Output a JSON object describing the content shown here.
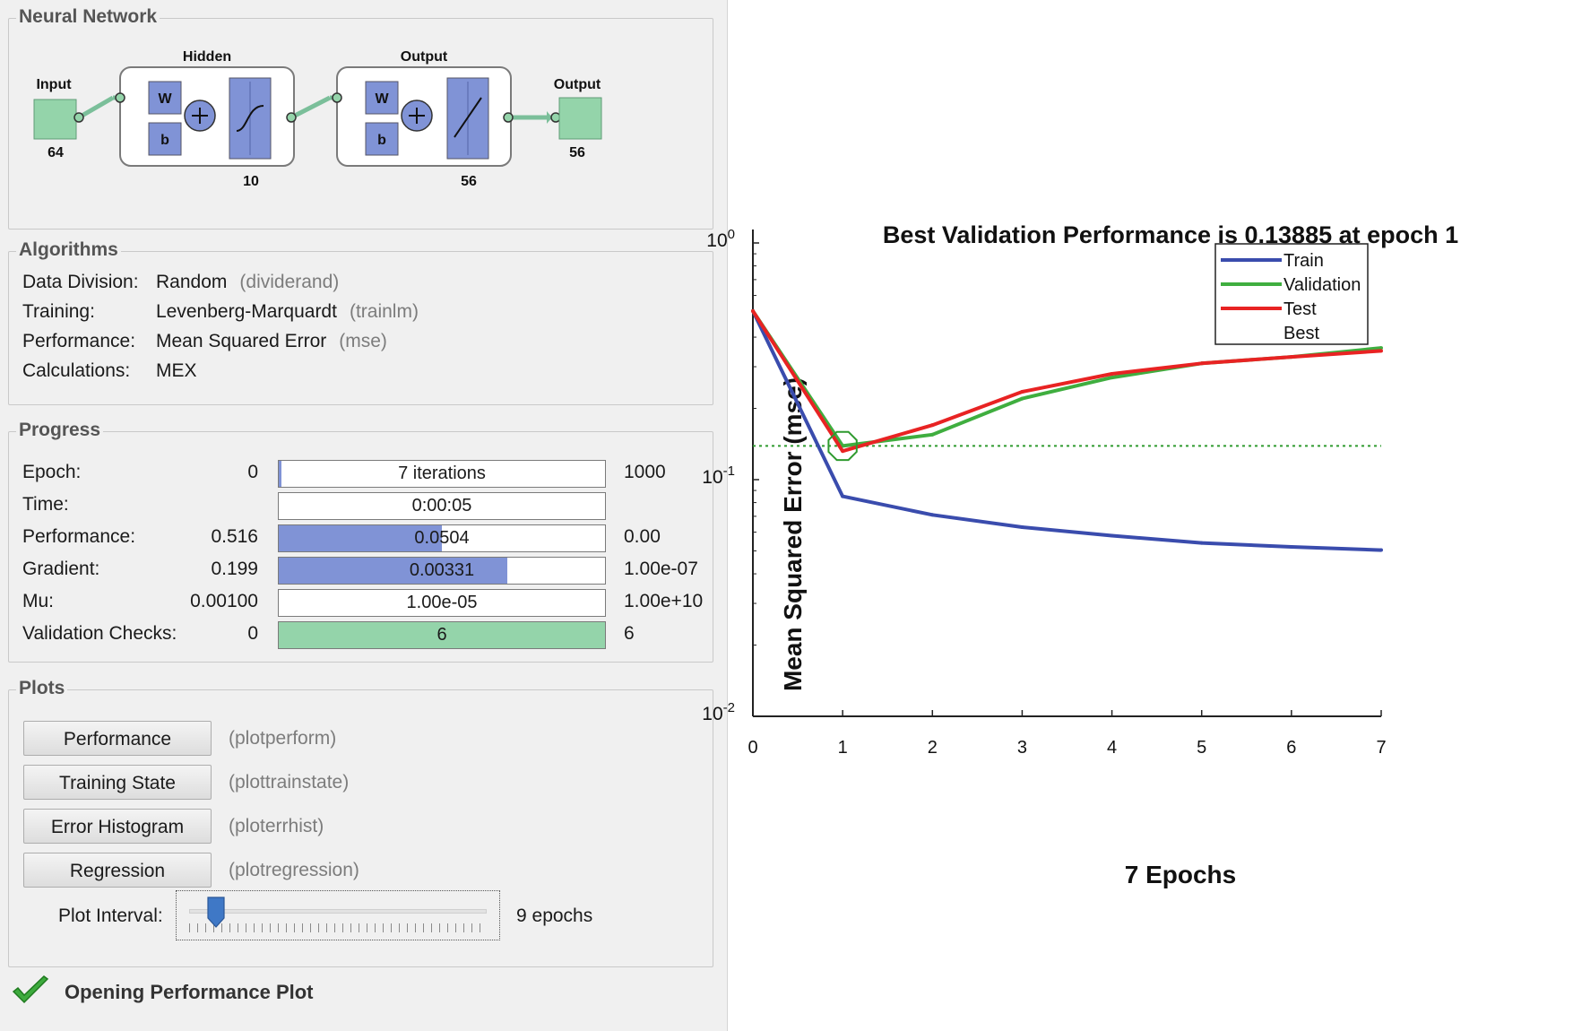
{
  "network": {
    "title": "Neural Network",
    "input_label": "Input",
    "input_size": "64",
    "hidden_label": "Hidden",
    "hidden_size": "10",
    "output_layer_label": "Output",
    "output_layer_size": "56",
    "output_label": "Output",
    "output_size": "56",
    "weight_symbol": "W",
    "bias_symbol": "b"
  },
  "algorithms": {
    "title": "Algorithms",
    "rows": [
      {
        "label": "Data Division:",
        "value": "Random",
        "code": "(dividerand)"
      },
      {
        "label": "Training:",
        "value": "Levenberg-Marquardt",
        "code": "(trainlm)"
      },
      {
        "label": "Performance:",
        "value": "Mean Squared Error",
        "code": "(mse)"
      },
      {
        "label": "Calculations:",
        "value": "MEX",
        "code": ""
      }
    ]
  },
  "progress": {
    "title": "Progress",
    "rows": [
      {
        "label": "Epoch:",
        "min": "0",
        "current": "7 iterations",
        "max": "1000",
        "fill": 0.007
      },
      {
        "label": "Time:",
        "min": "",
        "current": "0:00:05",
        "max": "",
        "fill": 0
      },
      {
        "label": "Performance:",
        "min": "0.516",
        "current": "0.0504",
        "max": "0.00",
        "fill": 0.5
      },
      {
        "label": "Gradient:",
        "min": "0.199",
        "current": "0.00331",
        "max": "1.00e-07",
        "fill": 0.7
      },
      {
        "label": "Mu:",
        "min": "0.00100",
        "current": "1.00e-05",
        "max": "1.00e+10",
        "fill": 0
      },
      {
        "label": "Validation Checks:",
        "min": "0",
        "current": "6",
        "max": "6",
        "fill": 1.0
      }
    ]
  },
  "plots": {
    "title": "Plots",
    "buttons": [
      {
        "label": "Performance",
        "code": "(plotperform)"
      },
      {
        "label": "Training State",
        "code": "(plottrainstate)"
      },
      {
        "label": "Error Histogram",
        "code": "(ploterrhist)"
      },
      {
        "label": "Regression",
        "code": "(plotregression)"
      }
    ],
    "interval_label": "Plot Interval:",
    "interval_value": "9 epochs",
    "interval_fraction": 0.09
  },
  "status": {
    "text": "Opening Performance Plot"
  },
  "colors": {
    "train": "#3a4cad",
    "validation": "#3fae3f",
    "test": "#e82323",
    "best": "#2e8b2e",
    "layer_blue": "#8093d6",
    "io_green": "#94d4aa"
  },
  "chart_data": {
    "type": "line",
    "title": "Best Validation Performance is 0.13885 at epoch 1",
    "xlabel": "7 Epochs",
    "ylabel": "Mean Squared Error  (mse)",
    "yscale": "log",
    "xlim": [
      0,
      7
    ],
    "ylim": [
      0.01,
      1
    ],
    "x_ticks": [
      "0",
      "1",
      "2",
      "3",
      "4",
      "5",
      "6",
      "7"
    ],
    "y_ticks": [
      {
        "base": "10",
        "exp": "0",
        "value": 1
      },
      {
        "base": "10",
        "exp": "-1",
        "value": 0.1
      },
      {
        "base": "10",
        "exp": "-2",
        "value": 0.01
      }
    ],
    "x": [
      0,
      1,
      2,
      3,
      4,
      5,
      6,
      7
    ],
    "series": [
      {
        "name": "Train",
        "color": "#3a4cad",
        "values": [
          0.516,
          0.085,
          0.071,
          0.063,
          0.058,
          0.054,
          0.052,
          0.0504
        ]
      },
      {
        "name": "Validation",
        "color": "#3fae3f",
        "values": [
          0.516,
          0.13885,
          0.155,
          0.22,
          0.27,
          0.31,
          0.33,
          0.36
        ]
      },
      {
        "name": "Test",
        "color": "#e82323",
        "values": [
          0.516,
          0.132,
          0.17,
          0.235,
          0.28,
          0.31,
          0.33,
          0.35
        ]
      }
    ],
    "best": {
      "name": "Best",
      "x": 1,
      "y": 0.13885
    },
    "legend_position": "top-right",
    "legend": [
      "Train",
      "Validation",
      "Test",
      "Best"
    ]
  }
}
